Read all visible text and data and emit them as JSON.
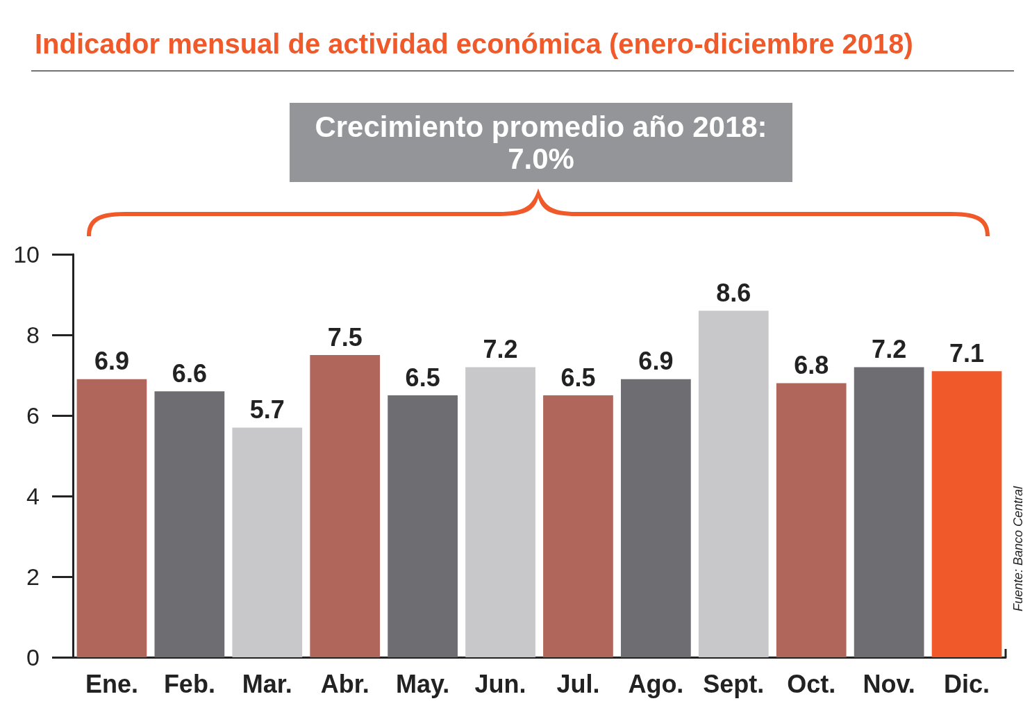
{
  "chart_data": {
    "type": "bar",
    "title": "Indicador mensual de actividad económica (enero-diciembre 2018)",
    "categories": [
      "Ene.",
      "Feb.",
      "Mar.",
      "Abr.",
      "May.",
      "Jun.",
      "Jul.",
      "Ago.",
      "Sept.",
      "Oct.",
      "Nov.",
      "Dic."
    ],
    "values": [
      6.9,
      6.6,
      5.7,
      7.5,
      6.5,
      7.2,
      6.5,
      6.9,
      8.6,
      6.8,
      7.2,
      7.1
    ],
    "colors": [
      "#b0665a",
      "#6d6d72",
      "#c8c8ca",
      "#b0665a",
      "#6d6d72",
      "#c8c8ca",
      "#b0665a",
      "#6d6d72",
      "#c8c8ca",
      "#b0665a",
      "#6d6d72",
      "#f05a2b"
    ],
    "ylim": [
      0,
      10
    ],
    "yticks": [
      0,
      2,
      4,
      6,
      8,
      10
    ],
    "grid": false,
    "data_labels": true,
    "annotations": [
      "Crecimiento promedio año 2018:\n7.0%",
      "Fuente: Banco Central"
    ]
  }
}
